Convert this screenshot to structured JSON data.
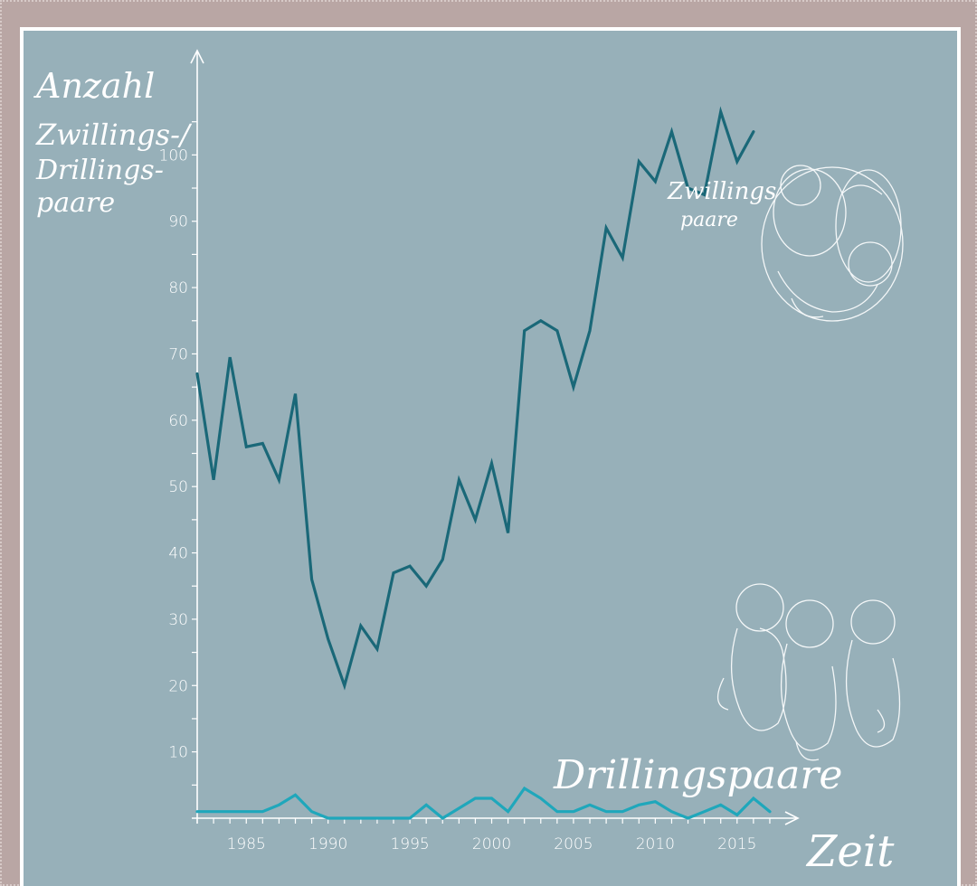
{
  "chart_data": {
    "type": "line",
    "ylabel_lines": [
      "Anzahl",
      "Zwillings-/",
      "Drillings-",
      "paare"
    ],
    "xlabel": "Zeit",
    "ylim": [
      0,
      110
    ],
    "xlim": [
      1982,
      2017.5
    ],
    "x_ticks": [
      1985,
      1990,
      1995,
      2000,
      2005,
      2010,
      2015
    ],
    "y_ticks": [
      10,
      20,
      30,
      40,
      50,
      60,
      70,
      80,
      90,
      100
    ],
    "grid": false,
    "legend": "inline labels",
    "x": [
      1982,
      1983,
      1984,
      1985,
      1986,
      1987,
      1988,
      1989,
      1990,
      1991,
      1992,
      1993,
      1994,
      1995,
      1996,
      1997,
      1998,
      1999,
      2000,
      2001,
      2002,
      2003,
      2004,
      2005,
      2006,
      2007,
      2008,
      2009,
      2010,
      2011,
      2012,
      2013,
      2014,
      2015,
      2016,
      2017
    ],
    "series": [
      {
        "name": "Zwillingspaare",
        "label_lines": [
          "Zwillings",
          "paare"
        ],
        "color": "#1a6878",
        "values": [
          67,
          51,
          69.5,
          56,
          56.5,
          51,
          64,
          36,
          27,
          20,
          29,
          25.5,
          37,
          38,
          35,
          39,
          51,
          45,
          53.5,
          43,
          73.5,
          75,
          73.5,
          65,
          73.5,
          89,
          84.5,
          99,
          96,
          103.5,
          95,
          94,
          106.5,
          99,
          103.5,
          null
        ]
      },
      {
        "name": "Drillingspaare",
        "label_lines": [
          "Drillingspaare"
        ],
        "color": "#1fa7bb",
        "values": [
          1,
          1,
          1,
          1,
          1,
          2,
          3.5,
          1,
          0,
          0,
          0,
          0,
          0,
          0,
          2,
          0,
          1.5,
          3,
          3,
          1,
          4.5,
          3,
          1,
          1,
          2,
          1,
          1,
          2,
          2.5,
          1,
          0,
          1,
          2,
          0.5,
          3,
          1
        ]
      }
    ]
  }
}
